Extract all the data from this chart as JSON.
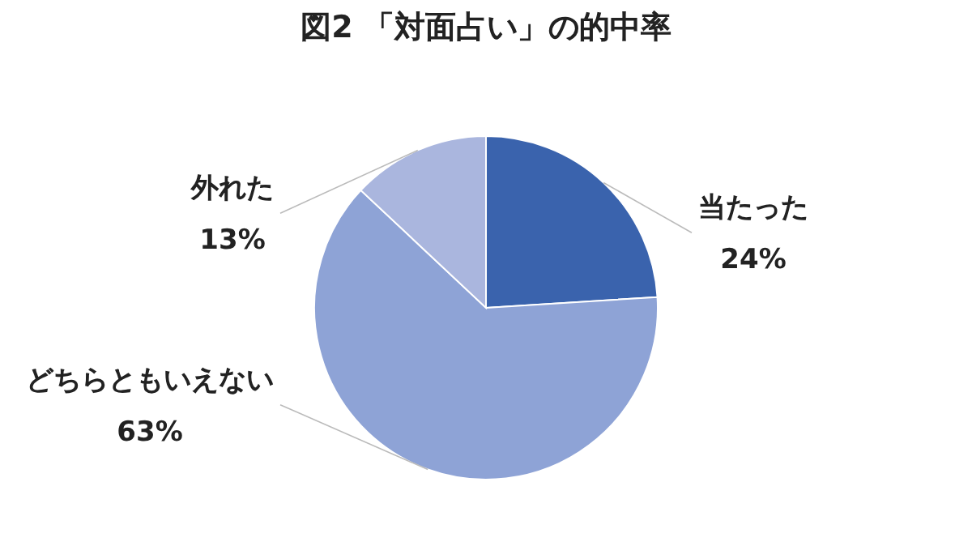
{
  "chart_data": {
    "type": "pie",
    "title": "図2 「対面占い」の的中率",
    "categories": [
      "当たった",
      "どちらともいえない",
      "外れた"
    ],
    "values": [
      24,
      63,
      13
    ],
    "colors": [
      "#3a63ad",
      "#8ea3d6",
      "#aab6de"
    ],
    "value_labels": [
      "24%",
      "63%",
      "13%"
    ],
    "legend": false
  }
}
